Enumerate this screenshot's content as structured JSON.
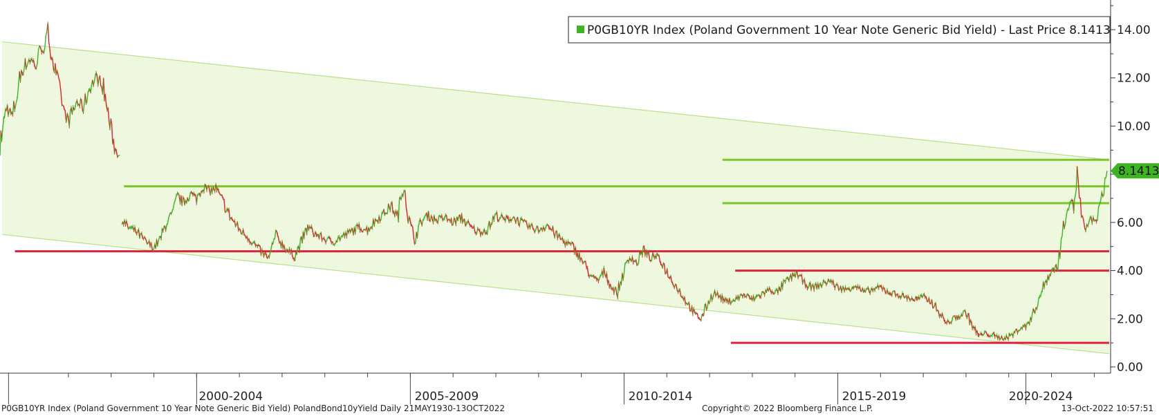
{
  "legend": {
    "text": "P0GB10YR Index (Poland Government 10 Year Note Generic Bid Yield) - Last Price 8.1413",
    "swatch_color": "#3cb521"
  },
  "last_price_label": "8.1413",
  "footer": {
    "description": "P0GB10YR Index (Poland Government 10 Year Note Generic Bid Yield) PolandBond10yYield  Daily 21MAY1930-13OCT2022",
    "copyright": "Copyright© 2022 Bloomberg Finance L.P.",
    "timestamp": "13-Oct-2022 10:57:51"
  },
  "colors": {
    "up": "#3cb521",
    "down": "#e0222d",
    "channel_fill": "#eef8df",
    "channel_edge": "#b7e08a",
    "resistance": "#7cc62a",
    "support": "#e0213a",
    "last_price_bg": "#3cb521"
  },
  "chart_data": {
    "type": "line",
    "ylim": [
      0,
      15
    ],
    "yticks": [
      0,
      2,
      4,
      6,
      8,
      10,
      12,
      14
    ],
    "ytick_labels": [
      "0.00",
      "2.00",
      "4.00",
      "6.00",
      "8.00",
      "10.00",
      "12.00",
      "14.00"
    ],
    "xlim": [
      1997.0,
      2022.95
    ],
    "period_labels": [
      {
        "label": "2000-2004",
        "center": 2002.4
      },
      {
        "label": "2005-2009",
        "center": 2007.45
      },
      {
        "label": "2010-2014",
        "center": 2012.45
      },
      {
        "label": "2015-2019",
        "center": 2017.45
      },
      {
        "label": "2020-2024",
        "center": 2021.35
      }
    ],
    "period_boundaries": [
      1997.2,
      2001.6,
      2006.6,
      2011.6,
      2016.6,
      2021.0
    ],
    "last_price": 8.1413,
    "series": [
      {
        "values": [
          [
            1997.0,
            9.2
          ],
          [
            1997.15,
            10.8
          ],
          [
            1997.3,
            10.4
          ],
          [
            1997.5,
            12.3
          ],
          [
            1997.7,
            12.8
          ],
          [
            1997.85,
            12.5
          ],
          [
            1997.95,
            13.3
          ],
          [
            1998.05,
            13.2
          ],
          [
            1998.12,
            13.9
          ],
          [
            1998.25,
            12.6
          ],
          [
            1998.4,
            11.5
          ],
          [
            1998.5,
            10.6
          ],
          [
            1998.6,
            10.2
          ],
          [
            1998.8,
            11.0
          ],
          [
            1998.95,
            10.8
          ],
          [
            1999.1,
            11.6
          ],
          [
            1999.25,
            12.0
          ],
          [
            1999.4,
            11.8
          ],
          [
            1999.55,
            10.3
          ],
          [
            1999.7,
            9.0
          ],
          [
            1999.8,
            8.8
          ],
          null,
          [
            1999.85,
            6.1
          ],
          [
            2000.0,
            5.8
          ],
          [
            2000.2,
            5.6
          ],
          [
            2000.4,
            5.2
          ],
          [
            2000.6,
            4.95
          ],
          [
            2000.75,
            5.3
          ],
          [
            2000.9,
            6.0
          ],
          [
            2001.05,
            6.4
          ],
          [
            2001.15,
            7.1
          ],
          [
            2001.3,
            6.8
          ],
          [
            2001.45,
            7.2
          ],
          [
            2001.6,
            7.0
          ],
          [
            2001.75,
            7.5
          ],
          [
            2001.9,
            7.3
          ],
          [
            2002.05,
            7.4
          ],
          [
            2002.2,
            6.9
          ],
          [
            2002.4,
            6.2
          ],
          [
            2002.6,
            5.7
          ],
          [
            2002.8,
            5.4
          ],
          [
            2003.0,
            5.0
          ],
          [
            2003.15,
            4.7
          ],
          [
            2003.3,
            4.5
          ],
          [
            2003.45,
            5.5
          ],
          [
            2003.6,
            5.1
          ],
          [
            2003.75,
            4.8
          ],
          [
            2003.9,
            4.6
          ],
          [
            2004.05,
            5.2
          ],
          [
            2004.2,
            5.8
          ],
          [
            2004.4,
            5.5
          ],
          [
            2004.6,
            5.3
          ],
          [
            2004.8,
            5.2
          ],
          [
            2005.0,
            5.4
          ],
          [
            2005.2,
            5.6
          ],
          [
            2005.4,
            5.8
          ],
          [
            2005.6,
            5.7
          ],
          [
            2005.8,
            6.1
          ],
          [
            2006.0,
            6.4
          ],
          [
            2006.15,
            6.7
          ],
          [
            2006.3,
            6.2
          ],
          [
            2006.45,
            7.7
          ],
          [
            2006.55,
            6.2
          ],
          [
            2006.7,
            5.3
          ],
          [
            2006.85,
            6.0
          ],
          [
            2007.0,
            6.3
          ],
          [
            2007.2,
            6.1
          ],
          [
            2007.4,
            6.2
          ],
          [
            2007.6,
            6.0
          ],
          [
            2007.8,
            6.2
          ],
          [
            2008.0,
            5.8
          ],
          [
            2008.2,
            5.6
          ],
          [
            2008.4,
            5.7
          ],
          [
            2008.6,
            6.3
          ],
          [
            2008.8,
            6.1
          ],
          [
            2009.0,
            6.2
          ],
          [
            2009.2,
            6.0
          ],
          [
            2009.4,
            5.8
          ],
          [
            2009.6,
            5.7
          ],
          [
            2009.8,
            5.9
          ],
          [
            2010.0,
            5.5
          ],
          [
            2010.2,
            5.2
          ],
          [
            2010.4,
            5.0
          ],
          [
            2010.55,
            4.6
          ],
          [
            2010.7,
            4.2
          ],
          [
            2010.85,
            3.7
          ],
          [
            2011.0,
            3.6
          ],
          [
            2011.15,
            4.0
          ],
          [
            2011.3,
            3.3
          ],
          [
            2011.45,
            3.1
          ],
          [
            2011.6,
            4.0
          ],
          [
            2011.75,
            4.6
          ],
          [
            2011.9,
            4.3
          ],
          [
            2012.05,
            4.9
          ],
          [
            2012.2,
            4.5
          ],
          [
            2012.35,
            4.6
          ],
          [
            2012.5,
            4.3
          ],
          [
            2012.65,
            3.8
          ],
          [
            2012.8,
            3.4
          ],
          [
            2012.95,
            3.0
          ],
          [
            2013.1,
            2.6
          ],
          [
            2013.25,
            2.2
          ],
          [
            2013.4,
            2.0
          ],
          [
            2013.55,
            2.6
          ],
          [
            2013.7,
            3.1
          ],
          [
            2013.85,
            2.9
          ],
          [
            2014.0,
            2.7
          ],
          [
            2014.2,
            2.8
          ],
          [
            2014.4,
            3.0
          ],
          [
            2014.6,
            2.8
          ],
          [
            2014.8,
            3.0
          ],
          [
            2015.0,
            3.2
          ],
          [
            2015.2,
            3.1
          ],
          [
            2015.35,
            3.5
          ],
          [
            2015.5,
            3.7
          ],
          [
            2015.65,
            3.9
          ],
          [
            2015.8,
            3.5
          ],
          [
            2016.0,
            3.3
          ],
          [
            2016.2,
            3.4
          ],
          [
            2016.4,
            3.6
          ],
          [
            2016.6,
            3.3
          ],
          [
            2016.8,
            3.2
          ],
          [
            2017.0,
            3.4
          ],
          [
            2017.2,
            3.1
          ],
          [
            2017.4,
            3.2
          ],
          [
            2017.6,
            3.3
          ],
          [
            2017.8,
            3.1
          ],
          [
            2018.0,
            3.0
          ],
          [
            2018.2,
            2.9
          ],
          [
            2018.4,
            2.8
          ],
          [
            2018.6,
            2.9
          ],
          [
            2018.8,
            2.7
          ],
          [
            2019.0,
            2.2
          ],
          [
            2019.15,
            1.8
          ],
          [
            2019.3,
            2.0
          ],
          [
            2019.45,
            2.1
          ],
          [
            2019.6,
            2.3
          ],
          [
            2019.75,
            1.7
          ],
          [
            2019.9,
            1.3
          ],
          [
            2020.1,
            1.4
          ],
          [
            2020.3,
            1.25
          ],
          [
            2020.5,
            1.2
          ],
          [
            2020.7,
            1.35
          ],
          [
            2020.85,
            1.6
          ],
          [
            2021.0,
            1.7
          ],
          [
            2021.15,
            2.1
          ],
          [
            2021.3,
            2.8
          ],
          [
            2021.45,
            3.5
          ],
          [
            2021.6,
            4.0
          ],
          [
            2021.75,
            4.2
          ],
          [
            2021.85,
            5.5
          ],
          [
            2021.95,
            6.5
          ],
          [
            2022.05,
            7.0
          ],
          [
            2022.12,
            6.6
          ],
          [
            2022.2,
            8.0
          ],
          [
            2022.3,
            6.3
          ],
          [
            2022.4,
            5.5
          ],
          [
            2022.5,
            6.2
          ],
          [
            2022.6,
            6.0
          ],
          [
            2022.7,
            6.4
          ],
          [
            2022.8,
            7.2
          ],
          [
            2022.9,
            8.1413
          ]
        ]
      }
    ],
    "channel": {
      "upper": [
        [
          1997.05,
          13.5
        ],
        [
          2022.95,
          8.6
        ]
      ],
      "lower": [
        [
          1997.05,
          5.5
        ],
        [
          2022.95,
          0.55
        ]
      ]
    },
    "resistance_levels": [
      {
        "y": 8.6,
        "from": 2013.9,
        "to": 2022.95
      },
      {
        "y": 7.5,
        "from": 1999.9,
        "to": 2022.95
      },
      {
        "y": 6.8,
        "from": 2013.9,
        "to": 2022.95
      }
    ],
    "support_levels": [
      {
        "y": 4.8,
        "from": 1997.35,
        "to": 2022.95
      },
      {
        "y": 4.0,
        "from": 2014.2,
        "to": 2022.95
      },
      {
        "y": 1.0,
        "from": 2014.1,
        "to": 2022.95
      }
    ]
  }
}
